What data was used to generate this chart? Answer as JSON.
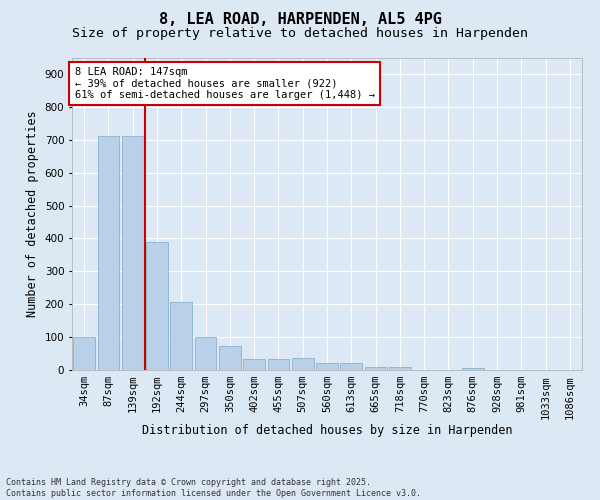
{
  "title": "8, LEA ROAD, HARPENDEN, AL5 4PG",
  "subtitle": "Size of property relative to detached houses in Harpenden",
  "xlabel": "Distribution of detached houses by size in Harpenden",
  "ylabel": "Number of detached properties",
  "categories": [
    "34sqm",
    "87sqm",
    "139sqm",
    "192sqm",
    "244sqm",
    "297sqm",
    "350sqm",
    "402sqm",
    "455sqm",
    "507sqm",
    "560sqm",
    "613sqm",
    "665sqm",
    "718sqm",
    "770sqm",
    "823sqm",
    "876sqm",
    "928sqm",
    "981sqm",
    "1033sqm",
    "1086sqm"
  ],
  "values": [
    100,
    710,
    710,
    390,
    207,
    100,
    73,
    32,
    33,
    35,
    20,
    20,
    10,
    8,
    0,
    0,
    5,
    0,
    0,
    0,
    0
  ],
  "bar_color": "#b8d0e8",
  "bar_edge_color": "#7aaac8",
  "vline_x_index": 2,
  "vline_color": "#cc0000",
  "annotation_text": "8 LEA ROAD: 147sqm\n← 39% of detached houses are smaller (922)\n61% of semi-detached houses are larger (1,448) →",
  "annotation_box_color": "#ffffff",
  "annotation_box_edge_color": "#cc0000",
  "ylim": [
    0,
    950
  ],
  "yticks": [
    0,
    100,
    200,
    300,
    400,
    500,
    600,
    700,
    800,
    900
  ],
  "background_color": "#dde8f5",
  "footer": "Contains HM Land Registry data © Crown copyright and database right 2025.\nContains public sector information licensed under the Open Government Licence v3.0.",
  "title_fontsize": 11,
  "subtitle_fontsize": 9.5,
  "tick_fontsize": 7.5,
  "ylabel_fontsize": 8.5,
  "xlabel_fontsize": 8.5,
  "annotation_fontsize": 7.5,
  "footer_fontsize": 6.0
}
